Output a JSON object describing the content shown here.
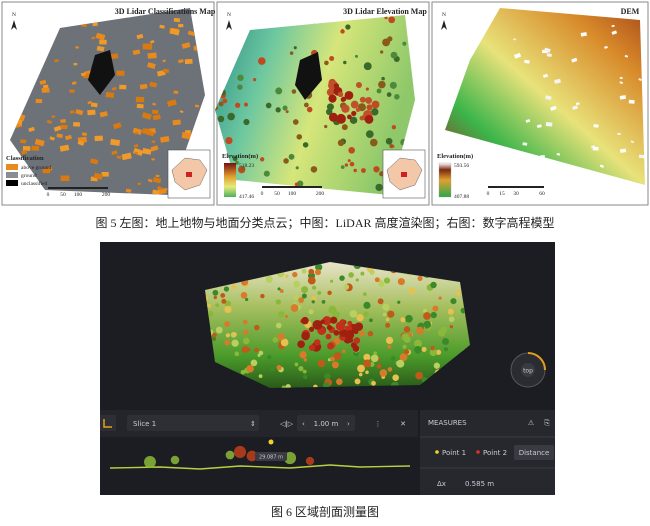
{
  "figure5": {
    "panels": [
      {
        "title": "3D Lidar Classifications Map",
        "north": "N",
        "legend_title": "Classification",
        "legend_items": [
          "above ground",
          "ground",
          "unclassified"
        ],
        "scale": [
          "0",
          "50",
          "100",
          "200"
        ]
      },
      {
        "title": "3D Lidar Elevation Map",
        "north": "N",
        "legend_title": "Elevation(m)",
        "legend_max": "518.23",
        "legend_min": "417.46",
        "scale": [
          "0",
          "50",
          "100",
          "200"
        ]
      },
      {
        "title": "DEM",
        "north": "N",
        "legend_title": "Elevation(m)",
        "legend_max": "593.56",
        "legend_min": "407.88",
        "scale": [
          "0",
          "15",
          "30",
          "60"
        ]
      }
    ],
    "caption": "图 5 左图：地上地物与地面分类点云；中图：LiDAR 高度渲染图；右图：数字高程模型"
  },
  "figure6": {
    "toolbar": {
      "slice": "Slice 1",
      "step": "1.00 m"
    },
    "viewer": {
      "compass": "top",
      "profile_label": "29.087 m"
    },
    "measures": {
      "title": "MEASURES",
      "point1": "Point 1",
      "point2": "Point 2",
      "mode": "Distance",
      "delta_label": "Δx",
      "delta_value": "0.585 m"
    },
    "caption": "图 6 区域剖面测量图"
  }
}
